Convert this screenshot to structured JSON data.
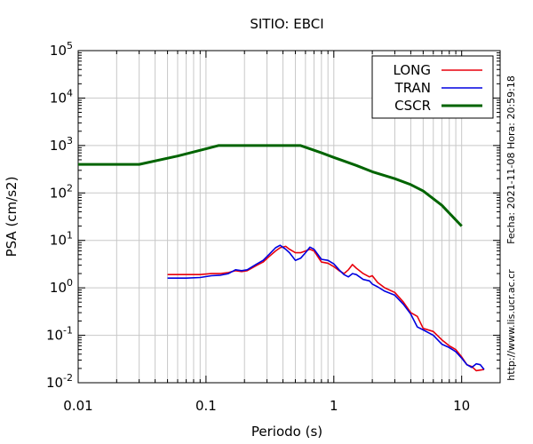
{
  "chart_data": {
    "type": "line",
    "title": "SITIO: EBCI",
    "xlabel": "Periodo (s)",
    "ylabel": "PSA (cm/s2)",
    "xscale": "log",
    "yscale": "log",
    "xlim": [
      0.01,
      20
    ],
    "ylim": [
      0.01,
      100000
    ],
    "x_ticks": [
      {
        "value": 0.01,
        "label": "0.01"
      },
      {
        "value": 0.1,
        "label": "0.1"
      },
      {
        "value": 1,
        "label": "1"
      },
      {
        "value": 10,
        "label": "10"
      }
    ],
    "y_ticks": [
      {
        "value": 0.01,
        "base": "10",
        "exp": "-2"
      },
      {
        "value": 0.1,
        "base": "10",
        "exp": "-1"
      },
      {
        "value": 1,
        "base": "10",
        "exp": "0"
      },
      {
        "value": 10,
        "base": "10",
        "exp": "1"
      },
      {
        "value": 100,
        "base": "10",
        "exp": "2"
      },
      {
        "value": 1000,
        "base": "10",
        "exp": "3"
      },
      {
        "value": 10000,
        "base": "10",
        "exp": "4"
      },
      {
        "value": 100000,
        "base": "10",
        "exp": "5"
      }
    ],
    "y_tick_labels": {
      "y_0_01": "10",
      "y_0_01_exp": "-2",
      "y_0_1": "10",
      "y_0_1_exp": "-1",
      "y_1": "10",
      "y_1_exp": "0",
      "y_10": "10",
      "y_10_exp": "1",
      "y_100": "10",
      "y_100_exp": "2",
      "y_1000": "10",
      "y_1000_exp": "3",
      "y_10000": "10",
      "y_10000_exp": "4",
      "y_100000": "10",
      "y_100000_exp": "5"
    },
    "grid": true,
    "legend": "top-right",
    "series": [
      {
        "name": "LONG",
        "color": "#e8000b",
        "points": [
          [
            0.05,
            1.9
          ],
          [
            0.07,
            1.9
          ],
          [
            0.09,
            1.9
          ],
          [
            0.11,
            2.0
          ],
          [
            0.13,
            2.0
          ],
          [
            0.15,
            2.1
          ],
          [
            0.17,
            2.3
          ],
          [
            0.19,
            2.2
          ],
          [
            0.21,
            2.3
          ],
          [
            0.25,
            3.0
          ],
          [
            0.28,
            3.5
          ],
          [
            0.31,
            4.5
          ],
          [
            0.35,
            6.0
          ],
          [
            0.38,
            7.0
          ],
          [
            0.42,
            7.5
          ],
          [
            0.45,
            6.5
          ],
          [
            0.5,
            5.5
          ],
          [
            0.55,
            5.5
          ],
          [
            0.6,
            6.0
          ],
          [
            0.65,
            6.5
          ],
          [
            0.7,
            6.0
          ],
          [
            0.8,
            3.5
          ],
          [
            0.9,
            3.3
          ],
          [
            1.0,
            2.8
          ],
          [
            1.1,
            2.3
          ],
          [
            1.2,
            2.0
          ],
          [
            1.3,
            2.4
          ],
          [
            1.4,
            3.1
          ],
          [
            1.5,
            2.6
          ],
          [
            1.7,
            2.0
          ],
          [
            1.9,
            1.7
          ],
          [
            2.0,
            1.8
          ],
          [
            2.2,
            1.3
          ],
          [
            2.5,
            1.0
          ],
          [
            3.0,
            0.8
          ],
          [
            3.5,
            0.5
          ],
          [
            4.0,
            0.3
          ],
          [
            4.5,
            0.25
          ],
          [
            5.0,
            0.14
          ],
          [
            6.0,
            0.12
          ],
          [
            7.0,
            0.08
          ],
          [
            8.0,
            0.06
          ],
          [
            9.0,
            0.05
          ],
          [
            10.0,
            0.035
          ],
          [
            11.0,
            0.024
          ],
          [
            12.0,
            0.022
          ],
          [
            13.0,
            0.018
          ],
          [
            15.0,
            0.019
          ]
        ]
      },
      {
        "name": "TRAN",
        "color": "#0000e0",
        "points": [
          [
            0.05,
            1.6
          ],
          [
            0.07,
            1.6
          ],
          [
            0.09,
            1.65
          ],
          [
            0.11,
            1.8
          ],
          [
            0.13,
            1.85
          ],
          [
            0.15,
            2.0
          ],
          [
            0.17,
            2.4
          ],
          [
            0.19,
            2.3
          ],
          [
            0.21,
            2.4
          ],
          [
            0.25,
            3.2
          ],
          [
            0.28,
            3.8
          ],
          [
            0.31,
            5.0
          ],
          [
            0.35,
            7.0
          ],
          [
            0.38,
            7.9
          ],
          [
            0.42,
            6.5
          ],
          [
            0.45,
            5.5
          ],
          [
            0.5,
            3.8
          ],
          [
            0.55,
            4.2
          ],
          [
            0.6,
            5.5
          ],
          [
            0.65,
            7.2
          ],
          [
            0.7,
            6.5
          ],
          [
            0.8,
            4.0
          ],
          [
            0.9,
            3.8
          ],
          [
            1.0,
            3.2
          ],
          [
            1.1,
            2.4
          ],
          [
            1.2,
            1.9
          ],
          [
            1.3,
            1.7
          ],
          [
            1.4,
            2.0
          ],
          [
            1.5,
            1.9
          ],
          [
            1.7,
            1.5
          ],
          [
            1.9,
            1.4
          ],
          [
            2.0,
            1.2
          ],
          [
            2.2,
            1.05
          ],
          [
            2.5,
            0.85
          ],
          [
            3.0,
            0.7
          ],
          [
            3.5,
            0.45
          ],
          [
            4.0,
            0.28
          ],
          [
            4.5,
            0.15
          ],
          [
            5.0,
            0.13
          ],
          [
            6.0,
            0.1
          ],
          [
            7.0,
            0.065
          ],
          [
            8.0,
            0.055
          ],
          [
            9.0,
            0.045
          ],
          [
            10.0,
            0.033
          ],
          [
            11.0,
            0.024
          ],
          [
            12.0,
            0.021
          ],
          [
            13.0,
            0.025
          ],
          [
            14.0,
            0.024
          ],
          [
            15.0,
            0.019
          ]
        ]
      },
      {
        "name": "CSCR",
        "color": "#006400",
        "points": [
          [
            0.01,
            400
          ],
          [
            0.03,
            400
          ],
          [
            0.06,
            600
          ],
          [
            0.1,
            850
          ],
          [
            0.125,
            1000
          ],
          [
            0.2,
            1000
          ],
          [
            0.3,
            1000
          ],
          [
            0.55,
            1000
          ],
          [
            0.8,
            700
          ],
          [
            1.0,
            560
          ],
          [
            1.5,
            380
          ],
          [
            2.0,
            280
          ],
          [
            3.0,
            200
          ],
          [
            4.0,
            150
          ],
          [
            5.0,
            110
          ],
          [
            7.0,
            55
          ],
          [
            10.0,
            20
          ]
        ]
      }
    ],
    "side_text": {
      "timestamp": "Fecha: 2021-11-08 Hora: 20:59:18",
      "url": "http://www.lis.ucr.ac.cr"
    }
  }
}
